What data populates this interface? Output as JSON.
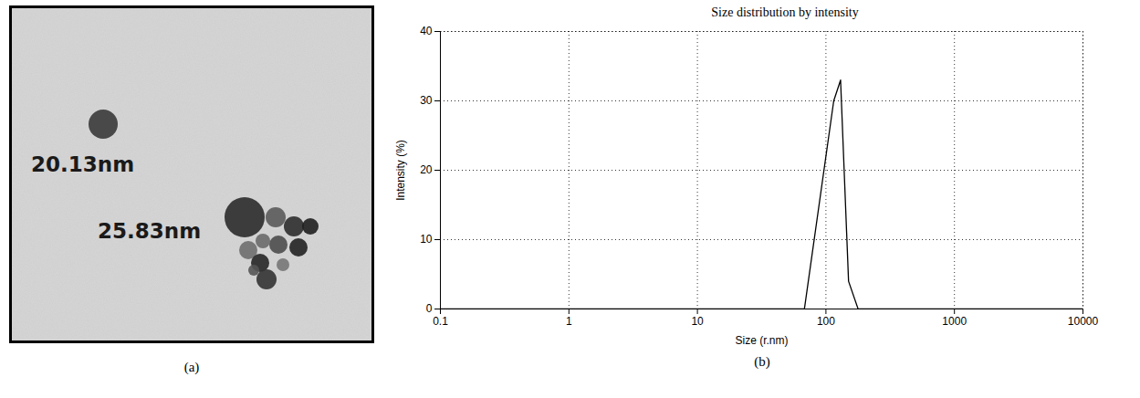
{
  "chart_data": [
    {
      "type": "image",
      "panel": "(a)",
      "annotations": [
        "20.13nm",
        "25.83nm"
      ]
    },
    {
      "type": "line",
      "panel": "(b)",
      "title": "Size distribution by intensity",
      "x": [
        0.1,
        68,
        115,
        130,
        150,
        178,
        10000
      ],
      "values": [
        0,
        0,
        30,
        33,
        4,
        0,
        0
      ],
      "xlabel": "Size (r.nm)",
      "ylabel": "Intensity (%)",
      "log": "x",
      "xlim": [
        0.1,
        10000
      ],
      "ylim": [
        0,
        40
      ],
      "xticks": [
        0.1,
        1,
        10,
        100,
        1000,
        10000
      ],
      "yticks": [
        0,
        10,
        20,
        30,
        40
      ],
      "grid": true,
      "color": "#000000"
    }
  ]
}
